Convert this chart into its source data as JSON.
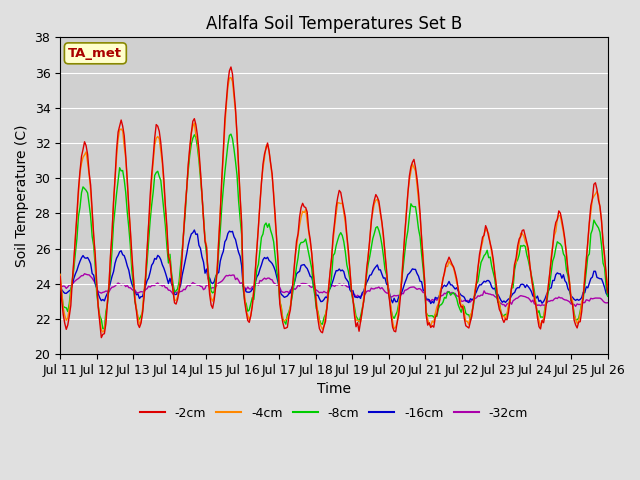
{
  "title": "Alfalfa Soil Temperatures Set B",
  "xlabel": "Time",
  "ylabel": "Soil Temperature (C)",
  "ylim": [
    20,
    38
  ],
  "background_color": "#e0e0e0",
  "plot_bg_color": "#d0d0d0",
  "annotation_text": "TA_met",
  "annotation_color": "#aa0000",
  "annotation_bg": "#ffffcc",
  "annotation_border": "#888800",
  "series_colors": {
    "-2cm": "#dd0000",
    "-4cm": "#ff8800",
    "-8cm": "#00cc00",
    "-16cm": "#0000cc",
    "-32cm": "#aa00aa"
  },
  "tick_labels": [
    "Jul 11",
    "Jul 12",
    "Jul 13",
    "Jul 14",
    "Jul 15",
    "Jul 16",
    "Jul 17",
    "Jul 18",
    "Jul 19",
    "Jul 20",
    "Jul 21",
    "Jul 22",
    "Jul 23",
    "Jul 24",
    "Jul 25",
    "Jul 26"
  ],
  "days": 15
}
